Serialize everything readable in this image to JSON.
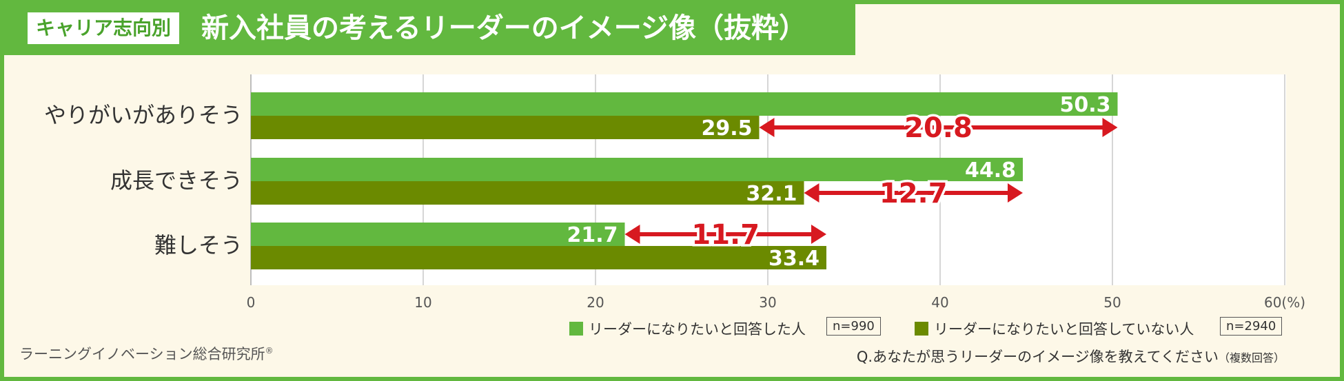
{
  "header": {
    "tag": "キャリア志向別",
    "title": "新入社員の考えるリーダーのイメージ像（抜粋）"
  },
  "colors": {
    "frame": "#62b83f",
    "series1": "#62b83f",
    "series2": "#6b8a00",
    "arrow": "#d71920",
    "background": "#fdf8e8"
  },
  "legend": {
    "items": [
      {
        "label": "リーダーになりたいと回答した人",
        "n": "n=990"
      },
      {
        "label": "リーダーになりたいと回答していない人",
        "n": "n=2940"
      }
    ]
  },
  "footer": {
    "source": "ラーニングイノベーション総合研究所",
    "registered": "®",
    "question": "Q.あなたが思うリーダーのイメージ像を教えてください",
    "question_note": "（複数回答）"
  },
  "chart_data": {
    "type": "bar",
    "orientation": "horizontal",
    "categories": [
      "やりがいがありそう",
      "成長できそう",
      "難しそう"
    ],
    "series": [
      {
        "name": "リーダーになりたいと回答した人",
        "values": [
          50.3,
          44.8,
          21.7
        ]
      },
      {
        "name": "リーダーになりたいと回答していない人",
        "values": [
          29.5,
          32.1,
          33.4
        ]
      }
    ],
    "differences": [
      {
        "category": "やりがいがありそう",
        "value": "20.8"
      },
      {
        "category": "成長できそう",
        "value": "12.7"
      },
      {
        "category": "難しそう",
        "value": "11.7"
      }
    ],
    "xlim": [
      0,
      60
    ],
    "xticks": [
      0,
      10,
      20,
      30,
      40,
      50,
      60
    ],
    "x_unit": "(%)",
    "grid": true,
    "legend_position": "bottom-right"
  }
}
